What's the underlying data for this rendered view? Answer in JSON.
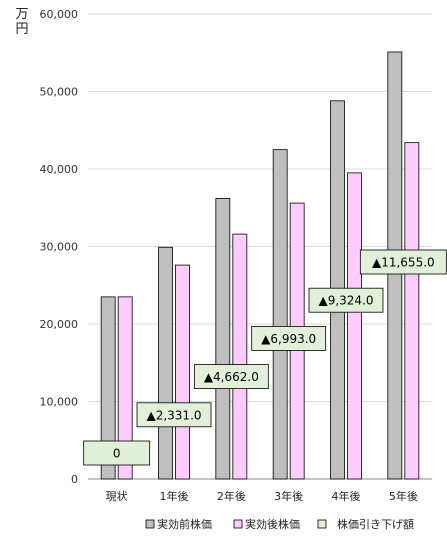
{
  "chart_data": {
    "type": "bar",
    "unit_label": "万円",
    "categories": [
      "現状",
      "1年後",
      "2年後",
      "3年後",
      "4年後",
      "5年後"
    ],
    "series": [
      {
        "name": "実効前株価",
        "color": "#bfbfbf",
        "values": [
          23500,
          29900,
          36200,
          42500,
          48800,
          55100
        ]
      },
      {
        "name": "実効後株価",
        "color": "#ffccff",
        "values": [
          23500,
          27600,
          31600,
          35600,
          39500,
          43400
        ]
      }
    ],
    "annotation_series": {
      "name": "株価引き下げ額",
      "color": "#e2f0d9",
      "labels": [
        "0",
        "▲2,331.0",
        "▲4,662.0",
        "▲6,993.0",
        "▲9,324.0",
        "▲11,655.0"
      ],
      "values": [
        0,
        2331,
        4662,
        6993,
        9324,
        11655
      ]
    },
    "yticks": [
      "0",
      "10,000",
      "20,000",
      "30,000",
      "40,000",
      "50,000",
      "60,000"
    ],
    "ylim": [
      0,
      60000
    ],
    "grid": true,
    "legend_position": "bottom"
  }
}
